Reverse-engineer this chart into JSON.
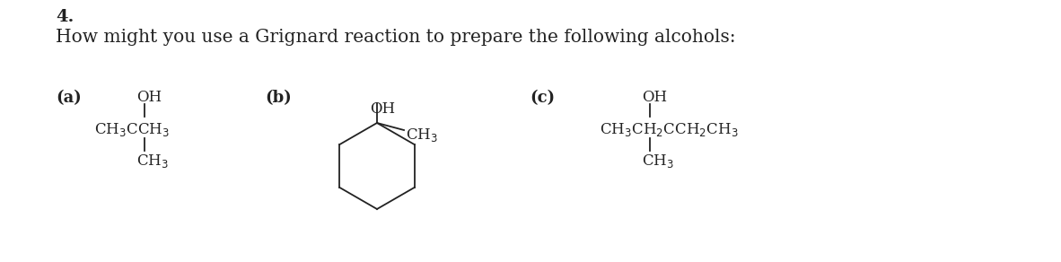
{
  "question_number": "4.",
  "main_text": "How might you use a Grignard reaction to prepare the following alcohols:",
  "label_a": "(a)",
  "label_b": "(b)",
  "label_c": "(c)",
  "bg_color": "#ffffff",
  "text_color": "#222222",
  "font_size_main": 14.5,
  "font_size_label": 13,
  "font_size_chem": 12,
  "title_font_size": 14,
  "fig_width": 11.82,
  "fig_height": 2.92,
  "dpi": 100
}
